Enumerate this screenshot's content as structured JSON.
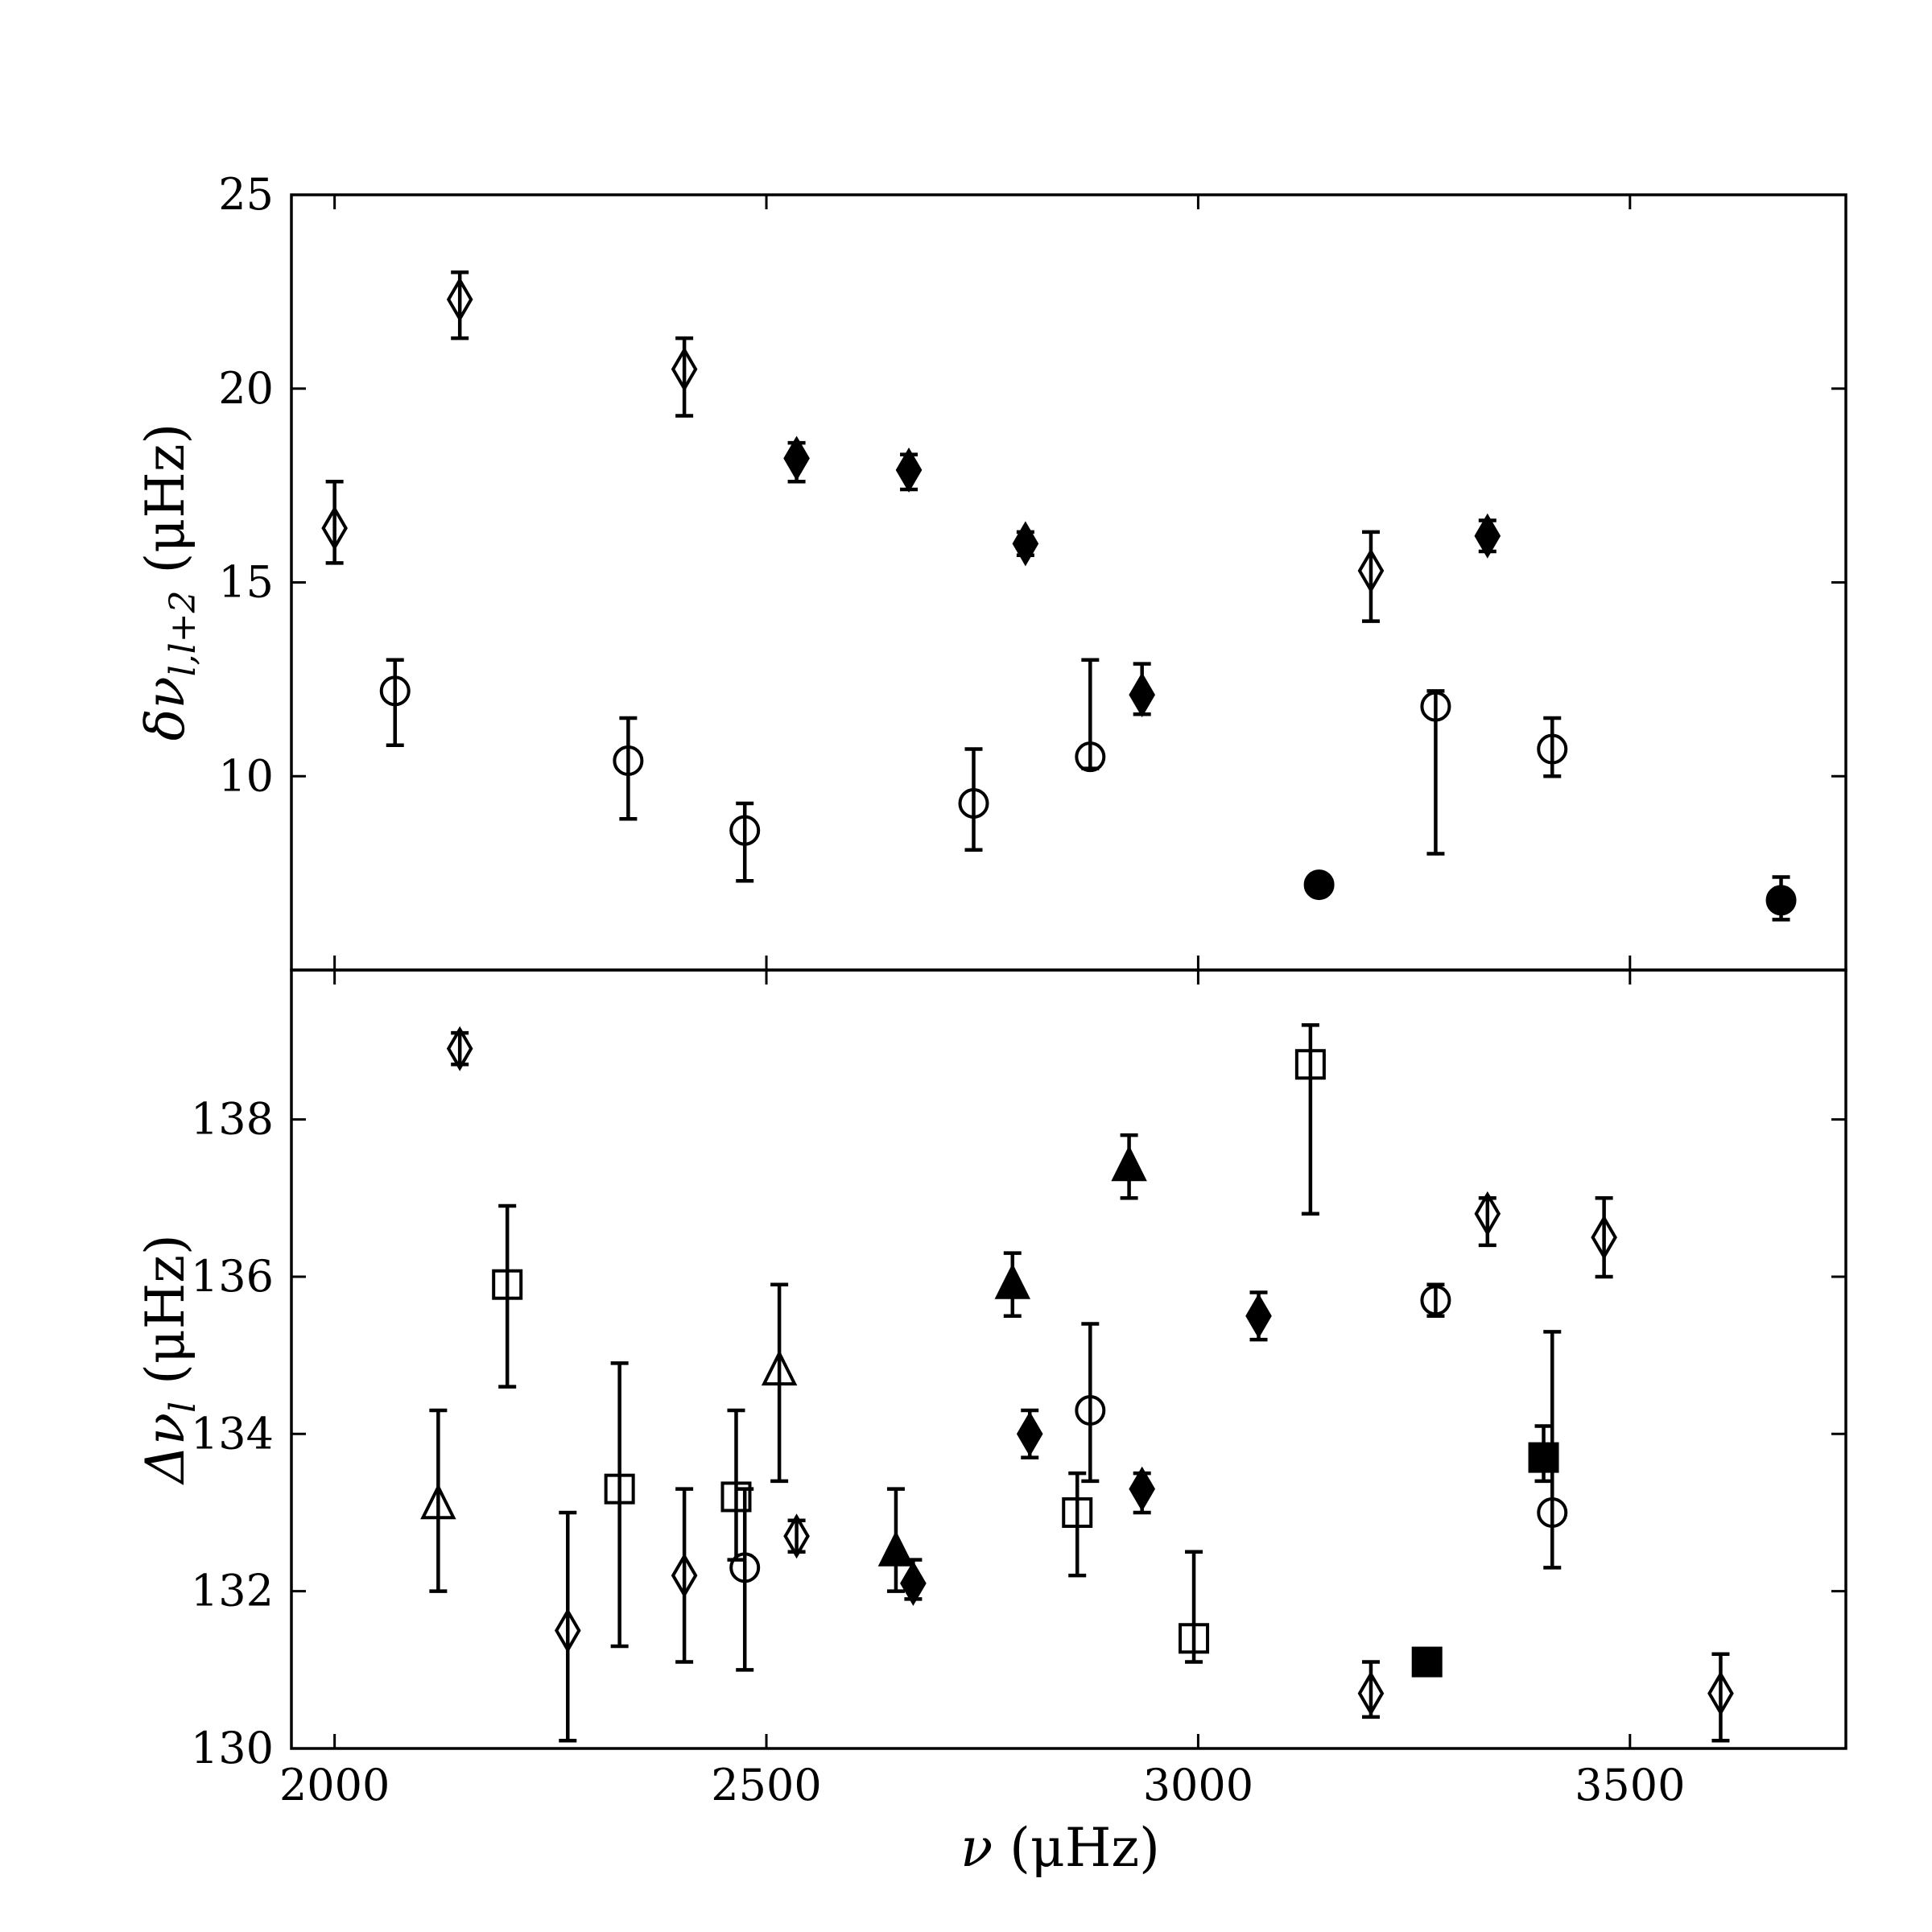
{
  "chart_data": [
    {
      "type": "scatter",
      "title": "",
      "xlabel": "ν (μHz)",
      "ylabel": "δν_{l,l+2} (μHz)",
      "ylabel_parts": {
        "sym": "δν",
        "sub": "l,l+2",
        "unit": " (μHz)"
      },
      "xlim": [
        1950,
        3750
      ],
      "ylim": [
        5,
        25
      ],
      "xticks": [
        2000,
        2500,
        3000,
        3500
      ],
      "yticks": [
        10,
        15,
        20,
        25
      ],
      "grid": false,
      "points": [
        {
          "x": 2000,
          "y": 16.4,
          "lo": 15.5,
          "hi": 17.6,
          "marker": "diamond",
          "filled": false
        },
        {
          "x": 2145,
          "y": 22.3,
          "lo": 21.3,
          "hi": 23.0,
          "marker": "diamond",
          "filled": false
        },
        {
          "x": 2405,
          "y": 20.5,
          "lo": 19.3,
          "hi": 21.3,
          "marker": "diamond",
          "filled": false
        },
        {
          "x": 2535,
          "y": 18.2,
          "lo": 17.6,
          "hi": 18.6,
          "marker": "diamond",
          "filled": true
        },
        {
          "x": 2665,
          "y": 17.9,
          "lo": 17.4,
          "hi": 18.3,
          "marker": "diamond",
          "filled": true
        },
        {
          "x": 2800,
          "y": 16.0,
          "lo": 15.7,
          "hi": 16.3,
          "marker": "diamond",
          "filled": true
        },
        {
          "x": 2935,
          "y": 12.1,
          "lo": 11.6,
          "hi": 12.9,
          "marker": "diamond",
          "filled": true
        },
        {
          "x": 3200,
          "y": 15.3,
          "lo": 14.0,
          "hi": 16.3,
          "marker": "diamond",
          "filled": false
        },
        {
          "x": 3335,
          "y": 16.2,
          "lo": 15.8,
          "hi": 16.6,
          "marker": "diamond",
          "filled": true
        },
        {
          "x": 2070,
          "y": 12.2,
          "lo": 10.8,
          "hi": 13.0,
          "marker": "circle",
          "filled": false
        },
        {
          "x": 2340,
          "y": 10.4,
          "lo": 8.9,
          "hi": 11.5,
          "marker": "circle",
          "filled": false
        },
        {
          "x": 2475,
          "y": 8.6,
          "lo": 7.3,
          "hi": 9.3,
          "marker": "circle",
          "filled": false
        },
        {
          "x": 2740,
          "y": 9.3,
          "lo": 8.1,
          "hi": 10.7,
          "marker": "circle",
          "filled": false
        },
        {
          "x": 2875,
          "y": 10.5,
          "lo": 10.2,
          "hi": 13.0,
          "marker": "circle",
          "filled": false
        },
        {
          "x": 3140,
          "y": 7.2,
          "lo": null,
          "hi": null,
          "marker": "circle",
          "filled": true
        },
        {
          "x": 3275,
          "y": 11.8,
          "lo": 8.0,
          "hi": 12.2,
          "marker": "circle",
          "filled": false
        },
        {
          "x": 3410,
          "y": 10.7,
          "lo": 10.0,
          "hi": 11.5,
          "marker": "circle",
          "filled": false
        },
        {
          "x": 3675,
          "y": 6.8,
          "lo": 6.3,
          "hi": 7.4,
          "marker": "circle",
          "filled": true
        }
      ]
    },
    {
      "type": "scatter",
      "title": "",
      "xlabel": "ν (μHz)",
      "ylabel": "Δν_l (μHz)",
      "ylabel_parts": {
        "sym": "Δν",
        "sub": "l",
        "unit": " (μHz)"
      },
      "xlim": [
        1950,
        3750
      ],
      "ylim": [
        130,
        139.9
      ],
      "xticks": [
        2000,
        2500,
        3000,
        3500
      ],
      "yticks": [
        130,
        132,
        134,
        136,
        138
      ],
      "grid": false,
      "points": [
        {
          "x": 2145,
          "y": 138.9,
          "lo": 138.7,
          "hi": 139.1,
          "marker": "diamond",
          "filled": false
        },
        {
          "x": 2270,
          "y": 131.5,
          "lo": 130.1,
          "hi": 133.0,
          "marker": "diamond",
          "filled": false
        },
        {
          "x": 2405,
          "y": 132.2,
          "lo": 131.1,
          "hi": 133.3,
          "marker": "diamond",
          "filled": false
        },
        {
          "x": 2535,
          "y": 132.7,
          "lo": 132.5,
          "hi": 132.9,
          "marker": "diamond",
          "filled": false
        },
        {
          "x": 2670,
          "y": 132.1,
          "lo": 131.9,
          "hi": 132.4,
          "marker": "diamond",
          "filled": true
        },
        {
          "x": 2805,
          "y": 134.0,
          "lo": 133.7,
          "hi": 134.3,
          "marker": "diamond",
          "filled": true
        },
        {
          "x": 2935,
          "y": 133.3,
          "lo": 133.0,
          "hi": 133.5,
          "marker": "diamond",
          "filled": true
        },
        {
          "x": 3070,
          "y": 135.5,
          "lo": 135.2,
          "hi": 135.8,
          "marker": "diamond",
          "filled": true
        },
        {
          "x": 3200,
          "y": 130.7,
          "lo": 130.4,
          "hi": 131.1,
          "marker": "diamond",
          "filled": false
        },
        {
          "x": 3335,
          "y": 136.8,
          "lo": 136.4,
          "hi": 137.0,
          "marker": "diamond",
          "filled": false
        },
        {
          "x": 3470,
          "y": 136.5,
          "lo": 136.0,
          "hi": 137.0,
          "marker": "diamond",
          "filled": false
        },
        {
          "x": 3605,
          "y": 130.7,
          "lo": 130.1,
          "hi": 131.2,
          "marker": "diamond",
          "filled": false
        },
        {
          "x": 2475,
          "y": 132.3,
          "lo": 131.0,
          "hi": 133.3,
          "marker": "circle",
          "filled": false
        },
        {
          "x": 2875,
          "y": 134.3,
          "lo": 133.4,
          "hi": 135.4,
          "marker": "circle",
          "filled": false
        },
        {
          "x": 3275,
          "y": 135.7,
          "lo": 135.5,
          "hi": 135.9,
          "marker": "circle",
          "filled": false
        },
        {
          "x": 3410,
          "y": 133.0,
          "lo": 132.3,
          "hi": 135.3,
          "marker": "circle",
          "filled": false
        },
        {
          "x": 2120,
          "y": 133.1,
          "lo": 132.0,
          "hi": 134.3,
          "marker": "triangle",
          "filled": false
        },
        {
          "x": 2515,
          "y": 134.8,
          "lo": 133.4,
          "hi": 135.9,
          "marker": "triangle",
          "filled": false
        },
        {
          "x": 2650,
          "y": 132.5,
          "lo": 132.0,
          "hi": 133.3,
          "marker": "triangle",
          "filled": true
        },
        {
          "x": 2785,
          "y": 135.9,
          "lo": 135.5,
          "hi": 136.3,
          "marker": "triangle",
          "filled": true
        },
        {
          "x": 2920,
          "y": 137.4,
          "lo": 137.0,
          "hi": 137.8,
          "marker": "triangle",
          "filled": true
        },
        {
          "x": 2200,
          "y": 135.9,
          "lo": 134.6,
          "hi": 136.9,
          "marker": "square",
          "filled": false
        },
        {
          "x": 2330,
          "y": 133.3,
          "lo": 131.3,
          "hi": 134.9,
          "marker": "square",
          "filled": false
        },
        {
          "x": 2465,
          "y": 133.2,
          "lo": 132.4,
          "hi": 134.3,
          "marker": "square",
          "filled": false
        },
        {
          "x": 2860,
          "y": 133.0,
          "lo": 132.2,
          "hi": 133.5,
          "marker": "square",
          "filled": false
        },
        {
          "x": 2995,
          "y": 131.4,
          "lo": 131.1,
          "hi": 132.5,
          "marker": "square",
          "filled": false
        },
        {
          "x": 3130,
          "y": 138.7,
          "lo": 136.8,
          "hi": 139.2,
          "marker": "square",
          "filled": false
        },
        {
          "x": 3265,
          "y": 131.1,
          "lo": null,
          "hi": null,
          "marker": "square",
          "filled": true
        },
        {
          "x": 3400,
          "y": 133.7,
          "lo": 133.4,
          "hi": 134.1,
          "marker": "square",
          "filled": true
        }
      ]
    }
  ]
}
